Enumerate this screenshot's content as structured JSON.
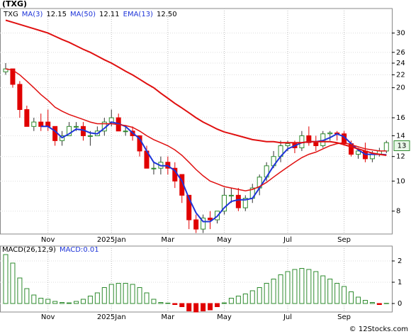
{
  "chart_data": [
    {
      "type": "candlestick",
      "title": "(TXG)",
      "ticker": "TXG",
      "log_scale": true,
      "grid": true,
      "up_color": "#2e8b2e",
      "down_color": "#e00000",
      "categories": [
        null,
        null,
        null,
        null,
        null,
        null,
        "Nov",
        null,
        null,
        null,
        null,
        null,
        null,
        null,
        null,
        "2025Jan",
        null,
        null,
        null,
        null,
        null,
        null,
        null,
        "Mar",
        null,
        null,
        null,
        null,
        null,
        null,
        null,
        "May",
        null,
        null,
        null,
        null,
        null,
        null,
        null,
        null,
        "Jul",
        null,
        null,
        null,
        null,
        null,
        null,
        null,
        "Sep",
        null,
        null,
        null,
        null,
        null,
        null
      ],
      "open": [
        22.5,
        23,
        20.5,
        17,
        15,
        15.5,
        15.5,
        15,
        13.5,
        14,
        15,
        15,
        14,
        14,
        14.5,
        15.5,
        16,
        14.5,
        14.5,
        14,
        12.5,
        11,
        11,
        11.5,
        11,
        10.5,
        9,
        7.5,
        7,
        7.6,
        7.5,
        8,
        9,
        9,
        8.2,
        8.8,
        9.5,
        10.3,
        11.2,
        12,
        13,
        13.2,
        12.8,
        14,
        13.3,
        13,
        14.2,
        14.3,
        14.2,
        13.2,
        12.2,
        12.5,
        11.8,
        12.2,
        12.5
      ],
      "high": [
        24,
        23,
        21,
        17.5,
        16,
        16.5,
        17,
        15,
        14.5,
        15.5,
        15.5,
        15.5,
        14.5,
        15,
        16,
        17,
        16.5,
        15,
        15,
        14,
        13,
        11.5,
        12,
        12,
        11.5,
        10.5,
        9,
        7.8,
        7.8,
        8,
        8,
        9.5,
        9.5,
        9.5,
        9,
        9.8,
        10.5,
        11.5,
        12.5,
        13.5,
        13.5,
        13.5,
        14.5,
        15,
        14,
        14.5,
        14.5,
        14.5,
        14.5,
        13.5,
        12.8,
        13.3,
        12.5,
        12.8,
        13.5
      ],
      "low": [
        22,
        20,
        16,
        15,
        14.5,
        14.5,
        14.5,
        13,
        13,
        14,
        14.5,
        13.5,
        13,
        14,
        14,
        15,
        14.5,
        14,
        13.5,
        12,
        11,
        10.5,
        10.5,
        10.5,
        9.5,
        8.5,
        7,
        6.8,
        6.8,
        7,
        7.3,
        7.8,
        8.5,
        8,
        8,
        8.5,
        9,
        10,
        11,
        11.5,
        12.5,
        12.3,
        12.5,
        13,
        12.5,
        12.8,
        13.5,
        13.5,
        13,
        12,
        11.8,
        11.5,
        11.5,
        12,
        12.3
      ],
      "close": [
        23,
        20.5,
        17,
        15,
        15.5,
        15,
        15,
        13.5,
        14,
        15,
        15,
        14,
        14,
        14.5,
        15.5,
        16,
        14.5,
        14.5,
        14,
        12.5,
        11,
        11,
        11.5,
        11,
        10,
        9,
        7.5,
        7,
        7.6,
        7.5,
        8,
        9,
        9,
        8.2,
        8.8,
        9.5,
        10.3,
        11.2,
        12,
        13,
        13.2,
        12.8,
        14,
        13.3,
        13,
        14.2,
        14.3,
        14.2,
        13.2,
        12.2,
        12.5,
        11.8,
        12.2,
        12.5,
        13.3
      ],
      "series": [
        {
          "name": "MA(3)",
          "legend_value": "12.15",
          "color": "#1f35d8",
          "width": 2,
          "values": [
            null,
            null,
            null,
            null,
            null,
            15,
            15,
            14.5,
            13.8,
            14.2,
            14.7,
            14.6,
            14.3,
            14.2,
            14.8,
            15.5,
            15.3,
            15,
            14.3,
            13.7,
            12.5,
            11.5,
            11.2,
            11.2,
            10.8,
            10,
            8.8,
            7.9,
            7.4,
            7.4,
            7.7,
            8.2,
            8.6,
            8.7,
            8.7,
            8.8,
            9.5,
            10.3,
            11.2,
            12,
            12.7,
            13,
            13.3,
            13.4,
            13.4,
            13.5,
            13.8,
            14.2,
            13.9,
            13.2,
            12.6,
            12.2,
            12.2,
            12.2,
            12.15
          ]
        },
        {
          "name": "MA(50)",
          "legend_value": "12.11",
          "color": "#e01010",
          "width": 2,
          "values": [
            33,
            32.5,
            32,
            31.5,
            31,
            30.5,
            30,
            29.3,
            28.6,
            28,
            27.3,
            26.6,
            26,
            25.3,
            24.6,
            24,
            23.3,
            22.6,
            22,
            21.3,
            20.6,
            20,
            19.2,
            18.5,
            17.8,
            17.2,
            16.6,
            16,
            15.5,
            15.1,
            14.7,
            14.4,
            14.2,
            14,
            13.8,
            13.6,
            13.5,
            13.4,
            13.4,
            13.3,
            13.3,
            13.3,
            13.3,
            13.4,
            13.4,
            13.4,
            13.4,
            13.3,
            13.1,
            12.9,
            12.7,
            12.5,
            12.3,
            12.2,
            12.11
          ]
        },
        {
          "name": "EMA(13)",
          "legend_value": "12.50",
          "color": "#e01010",
          "width": 1.5,
          "values": [
            23,
            22.8,
            22,
            21,
            20,
            19,
            18.2,
            17.3,
            16.8,
            16.4,
            16.1,
            15.8,
            15.5,
            15.3,
            15.3,
            15.3,
            15.2,
            15.1,
            14.9,
            14.5,
            14,
            13.6,
            13.3,
            13,
            12.6,
            12.1,
            11.5,
            10.9,
            10.4,
            10,
            9.8,
            9.6,
            9.5,
            9.4,
            9.3,
            9.4,
            9.6,
            9.9,
            10.3,
            10.7,
            11.1,
            11.5,
            11.9,
            12.2,
            12.4,
            12.7,
            13,
            13.2,
            13.3,
            13.1,
            12.9,
            12.7,
            12.6,
            12.5,
            12.5
          ]
        }
      ],
      "last_price": 13,
      "ylim": [
        6.75,
        36
      ],
      "yticks": [
        8,
        10,
        12,
        14,
        16,
        20,
        22,
        24,
        26,
        30
      ]
    },
    {
      "type": "macd",
      "title": "MACD(26,12,9)",
      "label": "MACD:",
      "last_value": 0.01,
      "up_color": "#2e8b2e",
      "down_color": "#e00000",
      "grid": true,
      "categories": [
        null,
        null,
        null,
        null,
        null,
        null,
        "Nov",
        null,
        null,
        null,
        null,
        null,
        null,
        null,
        null,
        "2025Jan",
        null,
        null,
        null,
        null,
        null,
        null,
        null,
        "Mar",
        null,
        null,
        null,
        null,
        null,
        null,
        null,
        "May",
        null,
        null,
        null,
        null,
        null,
        null,
        null,
        null,
        "Jul",
        null,
        null,
        null,
        null,
        null,
        null,
        null,
        "Sep",
        null,
        null,
        null,
        null,
        null,
        null
      ],
      "values": [
        2.3,
        1.9,
        1.2,
        0.7,
        0.4,
        0.25,
        0.2,
        0.1,
        0.05,
        0.03,
        0.1,
        0.2,
        0.35,
        0.5,
        0.75,
        0.9,
        0.95,
        0.95,
        0.9,
        0.75,
        0.5,
        0.2,
        0.05,
        0.02,
        -0.05,
        -0.15,
        -0.35,
        -0.4,
        -0.35,
        -0.3,
        -0.15,
        0.03,
        0.25,
        0.35,
        0.45,
        0.6,
        0.75,
        0.95,
        1.15,
        1.35,
        1.5,
        1.6,
        1.65,
        1.6,
        1.5,
        1.3,
        1.15,
        0.95,
        0.8,
        0.55,
        0.3,
        0.15,
        0.05,
        -0.05,
        0.01
      ],
      "ylim": [
        -0.4,
        2.7
      ],
      "yticks": [
        0,
        1,
        2
      ]
    },
    {
      "type": "footer",
      "text": "© 12Stocks.com"
    }
  ]
}
